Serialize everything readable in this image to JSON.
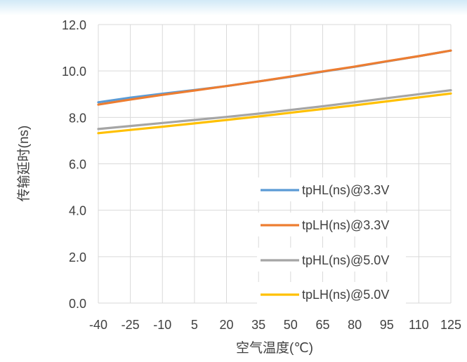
{
  "chart_data": {
    "type": "line",
    "title": "",
    "xlabel": "空气温度(℃)",
    "ylabel": "传输延时(ns)",
    "categories": [
      "-40",
      "-25",
      "-10",
      "5",
      "20",
      "35",
      "50",
      "65",
      "80",
      "95",
      "110",
      "125"
    ],
    "x": [
      -40,
      -25,
      -10,
      5,
      20,
      35,
      50,
      65,
      80,
      95,
      110,
      125
    ],
    "ylim": [
      0,
      12
    ],
    "yticks": [
      "0.0",
      "2.0",
      "4.0",
      "6.0",
      "8.0",
      "10.0",
      "12.0"
    ],
    "grid": true,
    "legend_position": "bottom-right",
    "series": [
      {
        "name": "tpHL(ns)@3.3V",
        "color": "#5B9BD5",
        "values": [
          8.65,
          8.85,
          9.02,
          9.18,
          9.35,
          9.55,
          9.75,
          9.97,
          10.18,
          10.41,
          10.64,
          10.88
        ]
      },
      {
        "name": "tpLH(ns)@3.3V",
        "color": "#ED7D31",
        "values": [
          8.55,
          8.77,
          8.97,
          9.16,
          9.35,
          9.55,
          9.76,
          9.98,
          10.19,
          10.42,
          10.64,
          10.88
        ]
      },
      {
        "name": "tpHL(ns)@5.0V",
        "color": "#A5A5A5",
        "values": [
          7.5,
          7.63,
          7.76,
          7.89,
          8.02,
          8.16,
          8.32,
          8.48,
          8.65,
          8.83,
          9.0,
          9.17
        ]
      },
      {
        "name": "tpLH(ns)@5.0V",
        "color": "#FFC000",
        "values": [
          7.32,
          7.46,
          7.6,
          7.74,
          7.89,
          8.04,
          8.2,
          8.36,
          8.52,
          8.69,
          8.86,
          9.03
        ]
      }
    ]
  }
}
